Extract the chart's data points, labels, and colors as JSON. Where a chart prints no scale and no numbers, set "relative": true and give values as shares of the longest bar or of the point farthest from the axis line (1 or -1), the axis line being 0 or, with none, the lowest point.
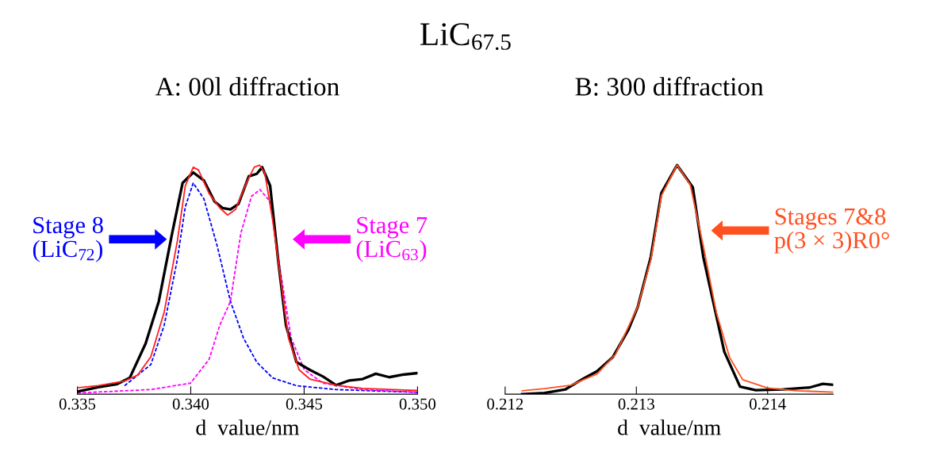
{
  "chart_data": [
    {
      "type": "line",
      "title": "A: 00l diffraction",
      "xlabel": "d  value/nm",
      "relative": true,
      "xlim": [
        0.335,
        0.35
      ],
      "xticks": [
        {
          "value": 0.335,
          "label": "0.335"
        },
        {
          "value": 0.34,
          "label": "0.340"
        },
        {
          "value": 0.345,
          "label": "0.345"
        },
        {
          "value": 0.35,
          "label": "0.350"
        }
      ],
      "tick_labels": "x",
      "grid": false,
      "legend": false,
      "annotations": [
        "LiC$_{67.5}$",
        "Stage 8\n(LiC$_{72}$)",
        "Stage 7\n(LiC$_{63}$)"
      ],
      "series": [
        {
          "color": "#0000ff",
          "line_style": "dashed",
          "x": [
            0.33708,
            0.33824,
            0.33883,
            0.33941,
            0.33976,
            0.34011,
            0.34058,
            0.34117,
            0.34175,
            0.34233,
            0.34291,
            0.34361,
            0.34466,
            0.34641,
            0.35
          ],
          "values": [
            0.037,
            0.129,
            0.301,
            0.589,
            0.818,
            0.922,
            0.853,
            0.646,
            0.405,
            0.244,
            0.14,
            0.071,
            0.037,
            0.02,
            0.008
          ]
        },
        {
          "color": "#ff00ff",
          "line_style": "dashed",
          "x": [
            0.335,
            0.33824,
            0.33999,
            0.34081,
            0.34128,
            0.34175,
            0.34221,
            0.34268,
            0.34305,
            0.3435,
            0.34396,
            0.34443,
            0.34501,
            0.34583,
            0.34758,
            0.35
          ],
          "values": [
            0.005,
            0.02,
            0.048,
            0.152,
            0.301,
            0.405,
            0.703,
            0.864,
            0.893,
            0.841,
            0.531,
            0.244,
            0.106,
            0.048,
            0.02,
            0.008
          ]
        },
        {
          "color": "#000000",
          "line_style": "solid",
          "x": [
            0.335,
            0.33591,
            0.33673,
            0.33731,
            0.33801,
            0.33859,
            0.33918,
            0.33964,
            0.34011,
            0.34058,
            0.34105,
            0.3414,
            0.34175,
            0.3421,
            0.34256,
            0.34291,
            0.34315,
            0.3435,
            0.34385,
            0.3442,
            0.34466,
            0.34525,
            0.34583,
            0.34641,
            0.347,
            0.34758,
            0.34816,
            0.34875,
            0.34933,
            0.35
          ],
          "values": [
            0.011,
            0.03,
            0.043,
            0.071,
            0.221,
            0.405,
            0.703,
            0.922,
            0.968,
            0.933,
            0.841,
            0.813,
            0.807,
            0.83,
            0.951,
            0.962,
            0.991,
            0.91,
            0.588,
            0.301,
            0.14,
            0.106,
            0.077,
            0.039,
            0.06,
            0.066,
            0.089,
            0.074,
            0.085,
            0.092
          ]
        },
        {
          "color": "#ff2020",
          "line_style": "solid",
          "x": [
            0.335,
            0.33591,
            0.33708,
            0.33766,
            0.33824,
            0.33883,
            0.33941,
            0.33976,
            0.34011,
            0.34034,
            0.34081,
            0.34128,
            0.34163,
            0.34198,
            0.34245,
            0.3428,
            0.34303,
            0.34326,
            0.34361,
            0.34396,
            0.34431,
            0.34478,
            0.34525,
            0.34641,
            0.34758,
            0.35
          ],
          "values": [
            0.028,
            0.037,
            0.057,
            0.083,
            0.163,
            0.359,
            0.669,
            0.91,
            0.991,
            0.979,
            0.876,
            0.813,
            0.782,
            0.807,
            0.922,
            0.991,
            1.0,
            0.968,
            0.761,
            0.508,
            0.244,
            0.106,
            0.066,
            0.039,
            0.025,
            0.016
          ]
        }
      ]
    },
    {
      "type": "line",
      "title": "B: 300 diffraction",
      "xlabel": "d  value/nm",
      "relative": true,
      "xlim": [
        0.212,
        0.2145
      ],
      "xticks": [
        0.212,
        0.213,
        0.214
      ],
      "tick_labels": "x",
      "grid": false,
      "legend": false,
      "annotations": [
        "Stages 7&8\np(3 × 3)R0°"
      ],
      "series": [
        {
          "color": "#000000",
          "line_style": "solid",
          "x": [
            0.21213,
            0.2123,
            0.21246,
            0.2126,
            0.2127,
            0.21282,
            0.21294,
            0.21301,
            0.21311,
            0.21319,
            0.21331,
            0.21343,
            0.21351,
            0.21367,
            0.21379,
            0.21391,
            0.21412,
            0.21432,
            0.21442,
            0.2145
          ],
          "values": [
            0.0,
            0.005,
            0.021,
            0.069,
            0.1,
            0.161,
            0.282,
            0.38,
            0.599,
            0.878,
            1.0,
            0.903,
            0.599,
            0.185,
            0.033,
            0.017,
            0.021,
            0.029,
            0.045,
            0.041
          ]
        },
        {
          "color": "#ff5020",
          "line_style": "solid",
          "x": [
            0.21213,
            0.2123,
            0.2125,
            0.2127,
            0.21284,
            0.21301,
            0.21311,
            0.21319,
            0.21331,
            0.21341,
            0.21351,
            0.21361,
            0.21371,
            0.21381,
            0.214,
            0.21422,
            0.2145
          ],
          "values": [
            0.015,
            0.024,
            0.039,
            0.088,
            0.173,
            0.38,
            0.586,
            0.866,
            1.0,
            0.915,
            0.647,
            0.355,
            0.161,
            0.063,
            0.027,
            0.015,
            0.009
          ]
        }
      ]
    }
  ]
}
